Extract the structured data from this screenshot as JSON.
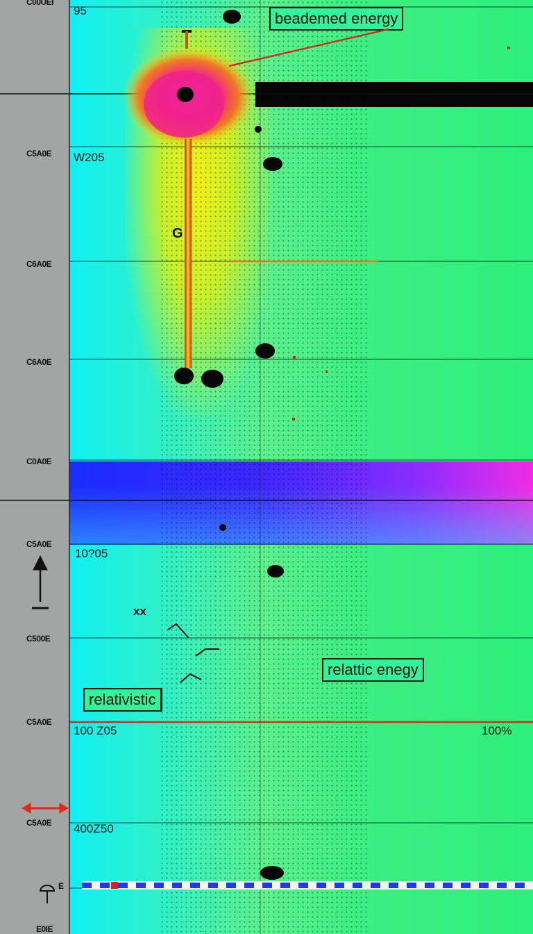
{
  "chart_data": {
    "type": "line",
    "title": "",
    "xlabel": "",
    "ylabel": "",
    "y_tick_labels": [
      "C00UEI",
      "C5A0E",
      "C6A0E",
      "C6A0E",
      "C0A0E",
      "C5A0E",
      "C500E",
      "C5A0E",
      "C5A0E",
      "E",
      "E0IE"
    ],
    "plot_labels": [
      "95",
      "W205",
      "G",
      "10?05",
      "100 Z05",
      "100%",
      "400Z50",
      "xx"
    ],
    "annotations": [
      "beademed energy",
      "relattic enegy",
      "relativistic"
    ],
    "colors": {
      "background": "#2def7c",
      "band": "#3a28ff",
      "band_edge": "#f02ce8",
      "hotspot": "#f0228c",
      "gutter": "#a3a5a4",
      "accent_line": "#e0281e"
    },
    "legend": "none",
    "grid": true
  }
}
